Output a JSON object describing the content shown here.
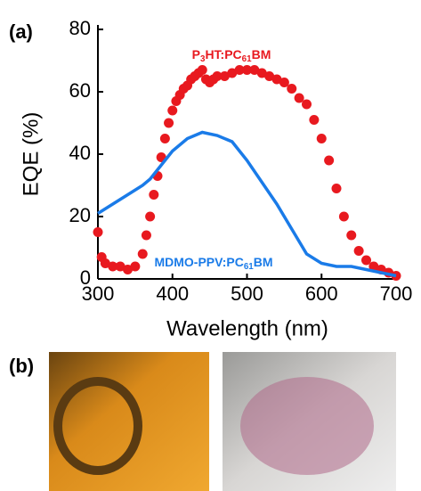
{
  "chart_data": {
    "type": "scatter-line",
    "panel_labels": [
      "(a)",
      "(b)"
    ],
    "xlabel": "Wavelength (nm)",
    "ylabel": "EQE (%)",
    "xlim": [
      300,
      700
    ],
    "xticks": [
      300,
      400,
      500,
      600,
      700
    ],
    "ylim": [
      0,
      80
    ],
    "yticks": [
      0,
      20,
      40,
      60,
      80
    ],
    "series": [
      {
        "name": "P3HT:PC61BM",
        "color": "#e8191f",
        "style": "dots",
        "x": [
          300,
          305,
          310,
          320,
          330,
          340,
          350,
          360,
          365,
          370,
          375,
          380,
          385,
          390,
          395,
          400,
          405,
          410,
          415,
          420,
          425,
          430,
          435,
          440,
          445,
          450,
          455,
          460,
          470,
          480,
          490,
          500,
          510,
          520,
          530,
          540,
          550,
          560,
          570,
          580,
          590,
          600,
          610,
          620,
          630,
          640,
          650,
          660,
          670,
          680,
          690,
          700
        ],
        "values": [
          15,
          7,
          5,
          4,
          4,
          3,
          4,
          8,
          14,
          20,
          27,
          33,
          39,
          45,
          50,
          54,
          57,
          59,
          61,
          62,
          64,
          65,
          66,
          67,
          64,
          63,
          64,
          65,
          65,
          66,
          67,
          67,
          67,
          66,
          65,
          64,
          63,
          61,
          58,
          56,
          51,
          45,
          38,
          29,
          20,
          14,
          9,
          6,
          4,
          3,
          2,
          1
        ]
      },
      {
        "name": "MDMO-PPV:PC61BM",
        "color": "#1a7be8",
        "style": "line",
        "x": [
          300,
          320,
          340,
          360,
          370,
          380,
          390,
          400,
          420,
          440,
          460,
          480,
          500,
          520,
          540,
          560,
          580,
          600,
          620,
          640,
          660,
          680,
          700
        ],
        "values": [
          21,
          24,
          27,
          30,
          32,
          35,
          38,
          41,
          45,
          47,
          46,
          44,
          38,
          31,
          24,
          16,
          8,
          5,
          4,
          4,
          3,
          2,
          1
        ]
      }
    ]
  }
}
